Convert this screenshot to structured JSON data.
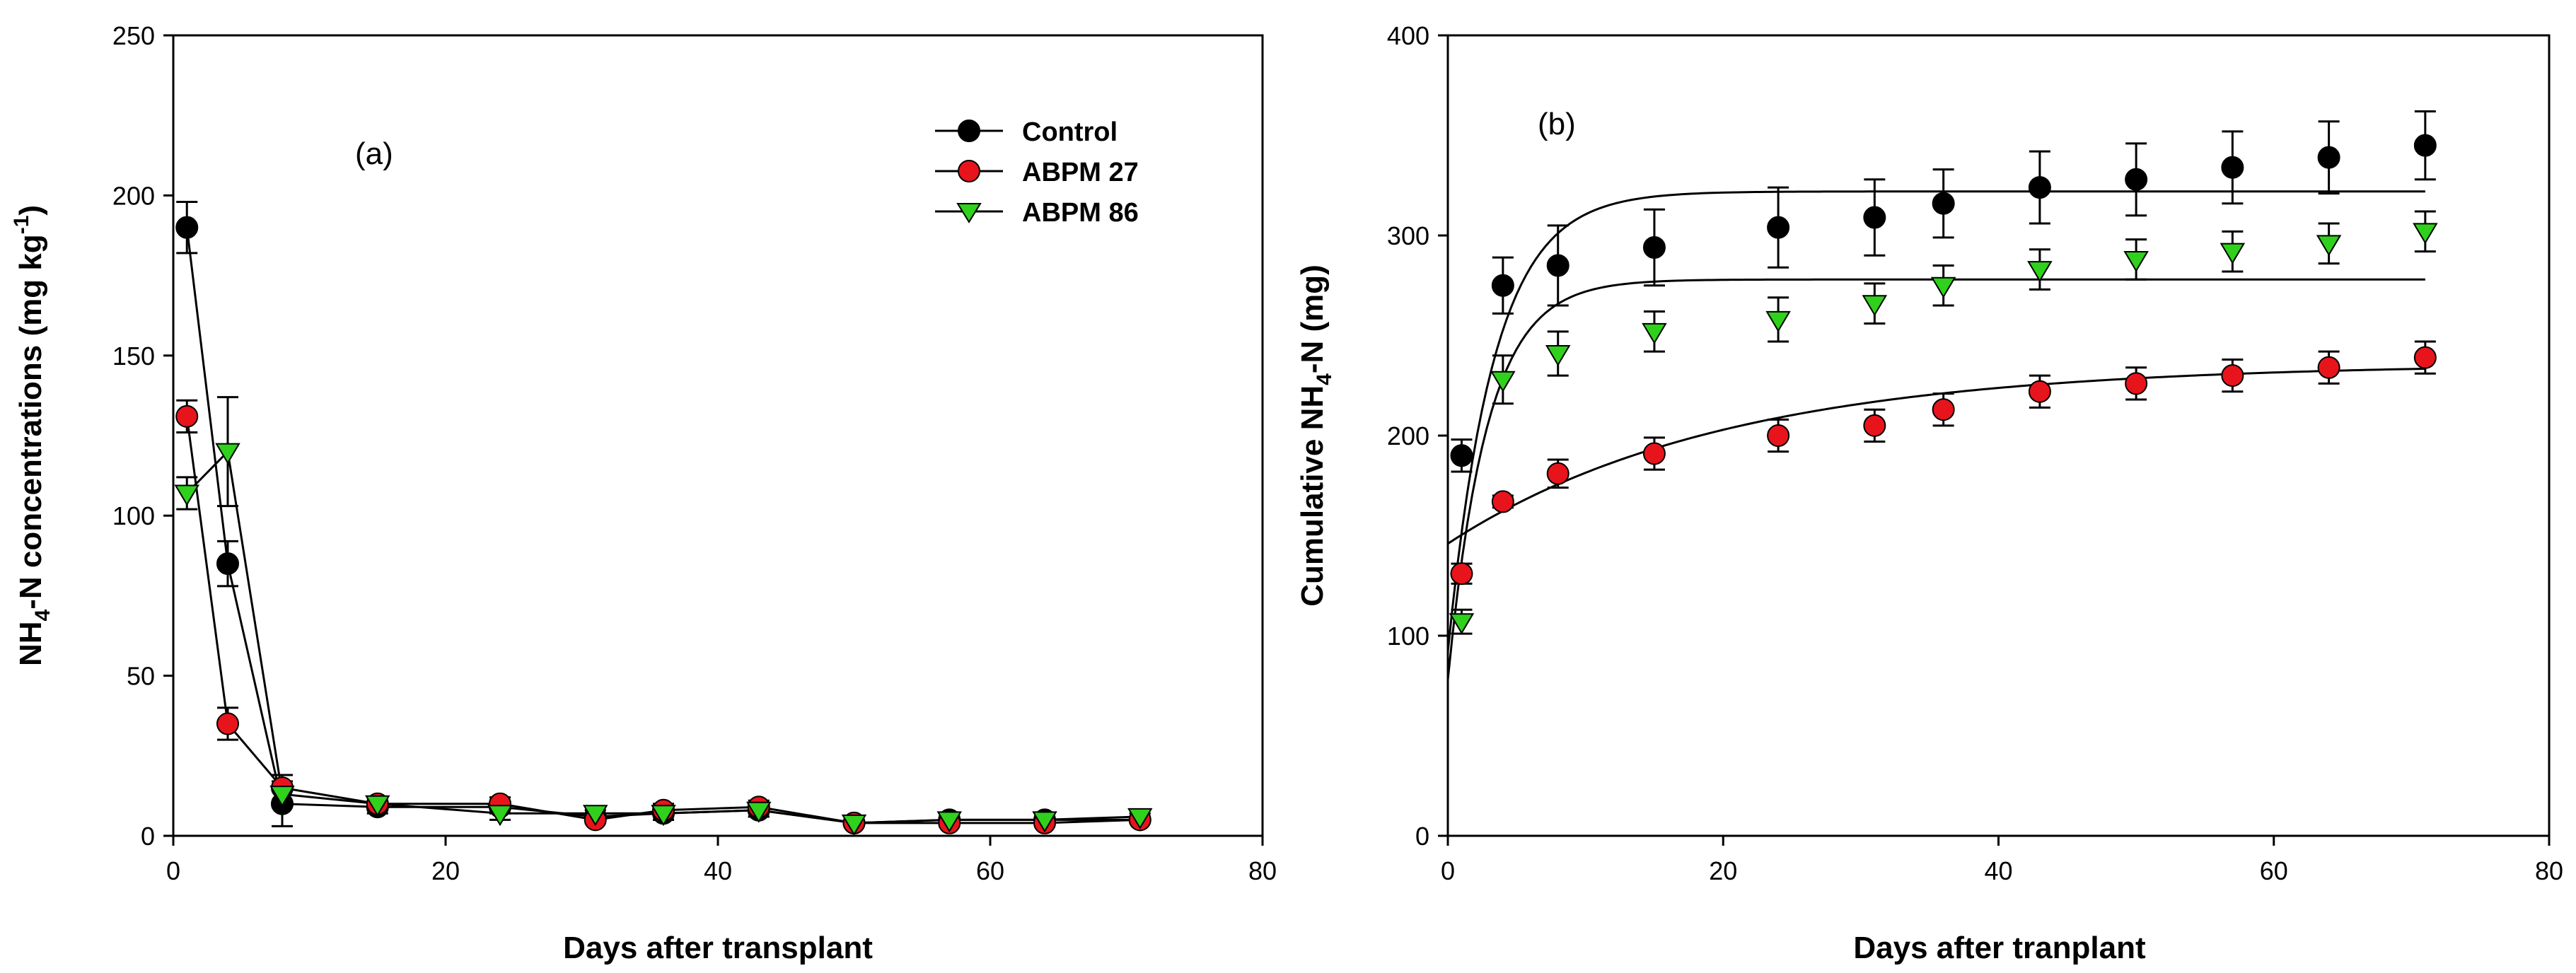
{
  "figure": {
    "colors": {
      "control": "#000000",
      "abpm27": "#e8141c",
      "abpm86": "#2fd11c",
      "marker_stroke": "#000000"
    }
  },
  "chart_data": [
    {
      "type": "line",
      "panel_label": "(a)",
      "title": "",
      "xlabel": "Days after transplant",
      "ylabel": {
        "pre": "NH",
        "sub": "4",
        "mid": "-N concentrations (mg kg",
        "sup": "-1",
        "post": ")"
      },
      "xlim": [
        0,
        80
      ],
      "ylim": [
        0,
        250
      ],
      "xticks": [
        0,
        20,
        40,
        60,
        80
      ],
      "yticks": [
        0,
        50,
        100,
        150,
        200,
        250
      ],
      "x": [
        1,
        4,
        8,
        15,
        24,
        31,
        36,
        43,
        50,
        57,
        64,
        71
      ],
      "legend": {
        "position": "top-right",
        "entries": [
          "Control",
          "ABPM 27",
          "ABPM 86"
        ]
      },
      "series": [
        {
          "name": "Control",
          "marker": "circle",
          "values": [
            190,
            85,
            10,
            9,
            9,
            6,
            7,
            8,
            4,
            5,
            5,
            5
          ],
          "errors": [
            8,
            7,
            7,
            2,
            2,
            2,
            2,
            2,
            1,
            1,
            1,
            1
          ]
        },
        {
          "name": "ABPM 27",
          "marker": "circle",
          "values": [
            131,
            35,
            15,
            10,
            10,
            5,
            8,
            9,
            4,
            4,
            4,
            5
          ],
          "errors": [
            5,
            5,
            4,
            2,
            2,
            1,
            2,
            2,
            1,
            1,
            1,
            1
          ]
        },
        {
          "name": "ABPM 86",
          "marker": "triangle-down",
          "values": [
            107,
            120,
            13,
            10,
            7,
            7,
            7,
            8,
            4,
            5,
            5,
            6
          ],
          "errors": [
            5,
            17,
            4,
            2,
            2,
            2,
            2,
            2,
            1,
            1,
            1,
            1
          ]
        }
      ]
    },
    {
      "type": "scatter",
      "panel_label": "(b)",
      "title": "",
      "xlabel": "Days after tranplant",
      "ylabel": {
        "pre": "Cumulative NH",
        "sub": "4",
        "mid": "-N (mg)",
        "sup": "",
        "post": ""
      },
      "xlim": [
        0,
        80
      ],
      "ylim": [
        0,
        400
      ],
      "xticks": [
        0,
        20,
        40,
        60,
        80
      ],
      "yticks": [
        0,
        100,
        200,
        300,
        400
      ],
      "x": [
        1,
        4,
        8,
        15,
        24,
        31,
        36,
        43,
        50,
        57,
        64,
        71
      ],
      "series": [
        {
          "name": "Control",
          "marker": "circle",
          "values": [
            190,
            275,
            285,
            294,
            304,
            309,
            316,
            324,
            328,
            334,
            339,
            345
          ],
          "errors": [
            8,
            14,
            20,
            19,
            20,
            19,
            17,
            18,
            18,
            18,
            18,
            17
          ]
        },
        {
          "name": "ABPM 27",
          "marker": "circle",
          "values": [
            131,
            167,
            181,
            191,
            200,
            205,
            213,
            222,
            226,
            230,
            234,
            239
          ],
          "errors": [
            5,
            3,
            7,
            8,
            8,
            8,
            8,
            8,
            8,
            8,
            8,
            8
          ]
        },
        {
          "name": "ABPM 86",
          "marker": "triangle-down",
          "values": [
            107,
            228,
            241,
            252,
            258,
            266,
            275,
            283,
            288,
            292,
            296,
            302
          ],
          "errors": [
            6,
            12,
            11,
            10,
            11,
            10,
            10,
            10,
            10,
            10,
            10,
            10
          ]
        }
      ],
      "fitted_curves": [
        {
          "name": "Control fit",
          "x_range": [
            0,
            71
          ],
          "asymptote": 322,
          "start": 92,
          "rate": 0.3
        },
        {
          "name": "ABPM 86 fit",
          "x_range": [
            0,
            71
          ],
          "asymptote": 278,
          "start": 78,
          "rate": 0.35
        },
        {
          "name": "ABPM 27 fit",
          "x_range": [
            0,
            71
          ],
          "asymptote": 236,
          "start": 146,
          "rate": 0.05
        }
      ]
    }
  ]
}
